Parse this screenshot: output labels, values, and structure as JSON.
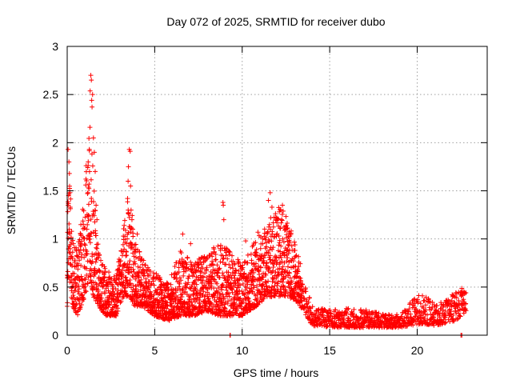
{
  "chart_data": {
    "type": "scatter",
    "title": "Day 072 of 2025, SRMTID for receiver dubo",
    "xlabel": "GPS time / hours",
    "ylabel": "SRMTID / TECUs",
    "xlim": [
      0,
      24
    ],
    "ylim": [
      0,
      3
    ],
    "x_ticks": [
      0,
      5,
      10,
      15,
      20
    ],
    "x_tick_labels": [
      "0",
      "5",
      "10",
      "15",
      "20"
    ],
    "y_ticks": [
      0,
      0.5,
      1,
      1.5,
      2,
      2.5,
      3
    ],
    "y_tick_labels": [
      "0",
      "0.5",
      "1",
      "1.5",
      "2",
      "2.5",
      "3"
    ],
    "grid": true,
    "marker": "+",
    "series": [
      {
        "name": "SRMTID",
        "color": "#ff0000",
        "envelope": {
          "x": [
            0,
            0.1,
            0.3,
            0.6,
            1.0,
            1.3,
            1.5,
            1.8,
            2.2,
            2.8,
            3.2,
            3.6,
            3.8,
            4.3,
            5.0,
            5.8,
            6.5,
            7.2,
            8.0,
            8.7,
            9.2,
            10.0,
            10.8,
            11.4,
            12.0,
            12.6,
            13.1,
            13.5,
            14.0,
            15.0,
            16.0,
            17.0,
            18.0,
            19.0,
            19.6,
            20.3,
            21.0,
            21.6,
            22.2,
            22.8
          ],
          "low": [
            0.3,
            0.6,
            0.3,
            0.2,
            0.4,
            0.6,
            0.4,
            0.3,
            0.2,
            0.2,
            0.4,
            0.4,
            0.3,
            0.3,
            0.2,
            0.15,
            0.2,
            0.2,
            0.25,
            0.2,
            0.2,
            0.2,
            0.3,
            0.4,
            0.4,
            0.4,
            0.35,
            0.25,
            0.1,
            0.08,
            0.08,
            0.08,
            0.08,
            0.08,
            0.1,
            0.12,
            0.1,
            0.12,
            0.15,
            0.25
          ],
          "high": [
            1.3,
            1.8,
            1.0,
            0.9,
            1.5,
            2.6,
            1.6,
            0.9,
            0.7,
            0.6,
            1.1,
            1.6,
            1.0,
            0.8,
            0.65,
            0.55,
            0.9,
            0.75,
            0.85,
            1.0,
            0.9,
            0.75,
            1.0,
            1.15,
            1.35,
            1.25,
            0.95,
            0.6,
            0.3,
            0.26,
            0.28,
            0.28,
            0.22,
            0.22,
            0.35,
            0.45,
            0.32,
            0.38,
            0.45,
            0.52
          ]
        },
        "spikes": [
          [
            0.05,
            1.93
          ],
          [
            0.1,
            1.8
          ],
          [
            0.05,
            1.35
          ],
          [
            0.12,
            1.1
          ],
          [
            0.2,
            0.8
          ],
          [
            1.35,
            2.7
          ],
          [
            1.38,
            2.65
          ],
          [
            1.45,
            2.5
          ],
          [
            1.4,
            2.44
          ],
          [
            1.42,
            2.37
          ],
          [
            1.3,
            2.16
          ],
          [
            1.5,
            2.05
          ],
          [
            1.55,
            1.9
          ],
          [
            1.6,
            1.7
          ],
          [
            1.25,
            1.57
          ],
          [
            1.2,
            1.8
          ],
          [
            1.65,
            1.35
          ],
          [
            1.7,
            1.2
          ],
          [
            3.55,
            1.93
          ],
          [
            3.6,
            1.91
          ],
          [
            3.5,
            1.75
          ],
          [
            3.48,
            1.6
          ],
          [
            3.62,
            1.55
          ],
          [
            3.45,
            1.42
          ],
          [
            3.65,
            1.3
          ],
          [
            3.7,
            1.2
          ],
          [
            8.9,
            1.38
          ],
          [
            8.92,
            1.35
          ],
          [
            8.95,
            1.2
          ],
          [
            11.6,
            1.48
          ],
          [
            11.5,
            1.4
          ],
          [
            11.7,
            1.33
          ],
          [
            12.3,
            1.35
          ],
          [
            12.25,
            1.2
          ],
          [
            9.3,
            0.0
          ],
          [
            9.32,
            0.0
          ],
          [
            22.5,
            0.0
          ],
          [
            22.55,
            0.0
          ],
          [
            4.0,
            1.05
          ],
          [
            6.6,
            1.05
          ],
          [
            7.05,
            0.95
          ],
          [
            10.2,
            0.98
          ],
          [
            10.9,
            1.07
          ]
        ]
      }
    ]
  }
}
